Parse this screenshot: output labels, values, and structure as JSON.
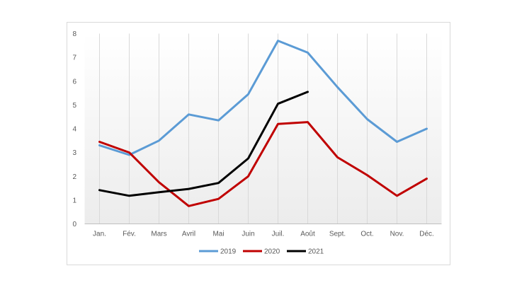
{
  "chart_data": {
    "type": "line",
    "categories": [
      "Jan.",
      "Fév.",
      "Mars",
      "Avril",
      "Mai",
      "Juin",
      "Juil.",
      "Août",
      "Sept.",
      "Oct.",
      "Nov.",
      "Déc."
    ],
    "ylim": [
      0,
      8
    ],
    "yticks": [
      0,
      1,
      2,
      3,
      4,
      5,
      6,
      7,
      8
    ],
    "grid": "vertical",
    "legend": "bottom",
    "series": [
      {
        "name": "2019",
        "color": "#5b9bd5",
        "values": [
          3.3,
          2.9,
          3.5,
          4.6,
          4.35,
          5.45,
          7.7,
          7.2,
          5.75,
          4.4,
          3.45,
          4.0
        ]
      },
      {
        "name": "2020",
        "color": "#c00000",
        "values": [
          3.45,
          3.0,
          1.75,
          0.75,
          1.05,
          2.0,
          4.2,
          4.28,
          2.8,
          2.05,
          1.18,
          1.9
        ]
      },
      {
        "name": "2021",
        "color": "#000000",
        "values": [
          1.42,
          1.18,
          1.33,
          1.47,
          1.72,
          2.75,
          5.05,
          5.55,
          null,
          null,
          null,
          null
        ]
      }
    ]
  }
}
